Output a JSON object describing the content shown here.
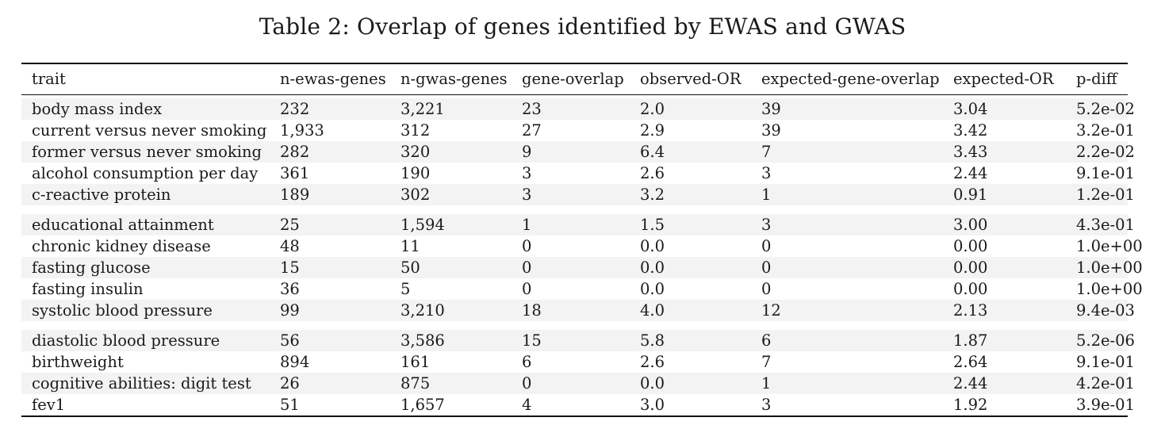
{
  "caption": "Table 2: Overlap of genes identified by EWAS and GWAS",
  "columns": [
    "trait",
    "n-ewas-genes",
    "n-gwas-genes",
    "gene-overlap",
    "observed-OR",
    "expected-gene-overlap",
    "expected-OR",
    "p-diff"
  ],
  "groups": [
    [
      [
        "body mass index",
        "232",
        "3,221",
        "23",
        "2.0",
        "39",
        "3.04",
        "5.2e-02"
      ],
      [
        "current versus never smoking",
        "1,933",
        "312",
        "27",
        "2.9",
        "39",
        "3.42",
        "3.2e-01"
      ],
      [
        "former versus never smoking",
        "282",
        "320",
        "9",
        "6.4",
        "7",
        "3.43",
        "2.2e-02"
      ],
      [
        "alcohol consumption per day",
        "361",
        "190",
        "3",
        "2.6",
        "3",
        "2.44",
        "9.1e-01"
      ],
      [
        "c-reactive protein",
        "189",
        "302",
        "3",
        "3.2",
        "1",
        "0.91",
        "1.2e-01"
      ]
    ],
    [
      [
        "educational attainment",
        "25",
        "1,594",
        "1",
        "1.5",
        "3",
        "3.00",
        "4.3e-01"
      ],
      [
        "chronic kidney disease",
        "48",
        "11",
        "0",
        "0.0",
        "0",
        "0.00",
        "1.0e+00"
      ],
      [
        "fasting glucose",
        "15",
        "50",
        "0",
        "0.0",
        "0",
        "0.00",
        "1.0e+00"
      ],
      [
        "fasting insulin",
        "36",
        "5",
        "0",
        "0.0",
        "0",
        "0.00",
        "1.0e+00"
      ],
      [
        "systolic blood pressure",
        "99",
        "3,210",
        "18",
        "4.0",
        "12",
        "2.13",
        "9.4e-03"
      ]
    ],
    [
      [
        "diastolic blood pressure",
        "56",
        "3,586",
        "15",
        "5.8",
        "6",
        "1.87",
        "5.2e-06"
      ],
      [
        "birthweight",
        "894",
        "161",
        "6",
        "2.6",
        "7",
        "2.64",
        "9.1e-01"
      ],
      [
        "cognitive abilities: digit test",
        "26",
        "875",
        "0",
        "0.0",
        "1",
        "2.44",
        "4.2e-01"
      ],
      [
        "fev1",
        "51",
        "1,657",
        "4",
        "3.0",
        "3",
        "1.92",
        "3.9e-01"
      ]
    ]
  ]
}
